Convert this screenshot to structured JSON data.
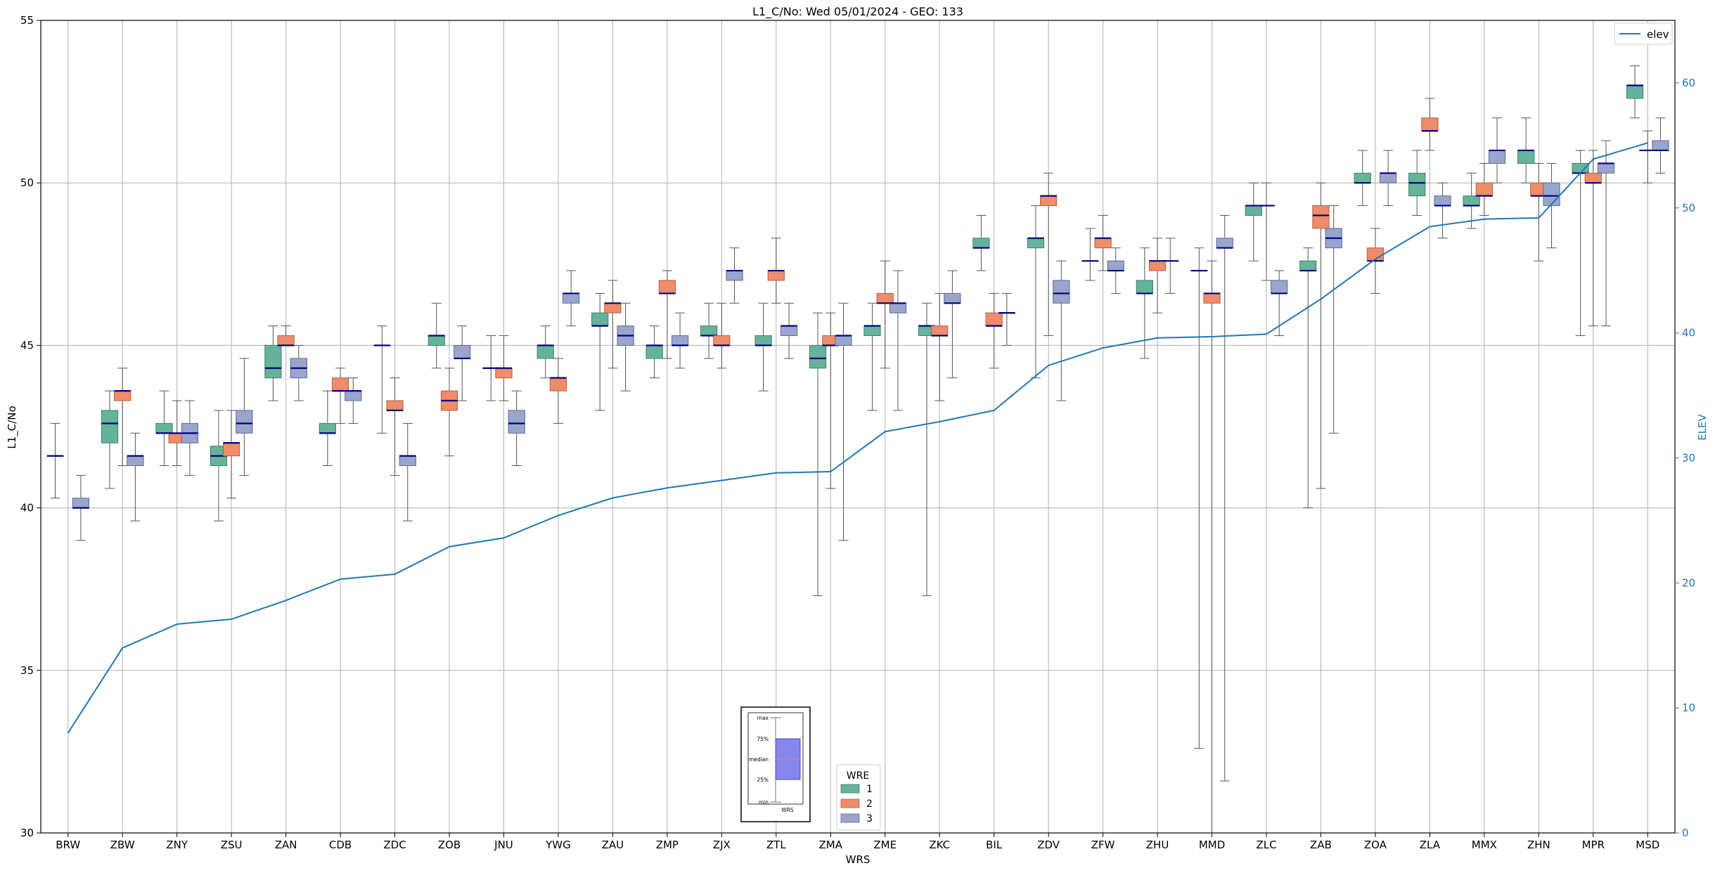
{
  "chart_data": {
    "type": "box",
    "title": "L1_C/No: Wed 05/01/2024 - GEO: 133",
    "xlabel": "WRS",
    "ylabel": "L1_C/No",
    "y2label": "ELEV",
    "ylim": [
      30,
      55
    ],
    "y2lim": [
      0,
      65
    ],
    "yticks": [
      30,
      35,
      40,
      45,
      50,
      55
    ],
    "y2ticks": [
      0,
      10,
      20,
      30,
      40,
      50,
      60
    ],
    "grid": true,
    "categories": [
      "BRW",
      "ZBW",
      "ZNY",
      "ZSU",
      "ZAN",
      "CDB",
      "ZDC",
      "ZOB",
      "JNU",
      "YWG",
      "ZAU",
      "ZMP",
      "ZJX",
      "ZTL",
      "ZMA",
      "ZME",
      "ZKC",
      "BIL",
      "ZDV",
      "ZFW",
      "ZHU",
      "MMD",
      "ZLC",
      "ZAB",
      "ZOA",
      "ZLA",
      "MMX",
      "ZHN",
      "MPR",
      "MSD"
    ],
    "legend_wre": {
      "title": "WRE",
      "entries": [
        {
          "label": "1",
          "color": "#66b39b"
        },
        {
          "label": "2",
          "color": "#ef8c6a"
        },
        {
          "label": "3",
          "color": "#9aa5cc"
        }
      ],
      "placement": "bottom-center"
    },
    "legend_elev": {
      "label": "elev",
      "color": "#1f77b4",
      "placement": "top-right"
    },
    "inset_key": {
      "labels": [
        "max",
        "75%",
        "median",
        "25%",
        "min"
      ],
      "xlabel": "WRS"
    },
    "boxes": [
      {
        "cat": "BRW",
        "wre": 1,
        "min": 40.3,
        "q1": 41.6,
        "median": 41.6,
        "q3": 41.6,
        "max": 42.6
      },
      {
        "cat": "BRW",
        "wre": 3,
        "min": 39.0,
        "q1": 40.0,
        "median": 40.0,
        "q3": 40.3,
        "max": 41.0
      },
      {
        "cat": "ZBW",
        "wre": 1,
        "min": 40.6,
        "q1": 42.0,
        "median": 42.6,
        "q3": 43.0,
        "max": 43.6
      },
      {
        "cat": "ZBW",
        "wre": 2,
        "min": 41.3,
        "q1": 43.3,
        "median": 43.6,
        "q3": 43.6,
        "max": 44.3
      },
      {
        "cat": "ZBW",
        "wre": 3,
        "min": 39.6,
        "q1": 41.3,
        "median": 41.6,
        "q3": 41.6,
        "max": 42.3
      },
      {
        "cat": "ZNY",
        "wre": 1,
        "min": 41.3,
        "q1": 42.3,
        "median": 42.3,
        "q3": 42.6,
        "max": 43.6
      },
      {
        "cat": "ZNY",
        "wre": 2,
        "min": 41.3,
        "q1": 42.0,
        "median": 42.3,
        "q3": 42.3,
        "max": 43.3
      },
      {
        "cat": "ZNY",
        "wre": 3,
        "min": 41.0,
        "q1": 42.0,
        "median": 42.3,
        "q3": 42.6,
        "max": 43.3
      },
      {
        "cat": "ZSU",
        "wre": 1,
        "min": 39.6,
        "q1": 41.3,
        "median": 41.6,
        "q3": 41.9,
        "max": 43.0
      },
      {
        "cat": "ZSU",
        "wre": 2,
        "min": 40.3,
        "q1": 41.6,
        "median": 42.0,
        "q3": 42.0,
        "max": 43.0
      },
      {
        "cat": "ZSU",
        "wre": 3,
        "min": 41.0,
        "q1": 42.3,
        "median": 42.6,
        "q3": 43.0,
        "max": 44.6
      },
      {
        "cat": "ZAN",
        "wre": 1,
        "min": 43.3,
        "q1": 44.0,
        "median": 44.3,
        "q3": 45.0,
        "max": 45.6
      },
      {
        "cat": "ZAN",
        "wre": 2,
        "min": 45.0,
        "q1": 45.0,
        "median": 45.0,
        "q3": 45.3,
        "max": 45.6
      },
      {
        "cat": "ZAN",
        "wre": 3,
        "min": 43.3,
        "q1": 44.0,
        "median": 44.3,
        "q3": 44.6,
        "max": 45.0
      },
      {
        "cat": "CDB",
        "wre": 1,
        "min": 41.3,
        "q1": 42.3,
        "median": 42.3,
        "q3": 42.6,
        "max": 43.6
      },
      {
        "cat": "CDB",
        "wre": 2,
        "min": 42.6,
        "q1": 43.6,
        "median": 43.6,
        "q3": 44.0,
        "max": 44.3
      },
      {
        "cat": "CDB",
        "wre": 3,
        "min": 42.6,
        "q1": 43.3,
        "median": 43.6,
        "q3": 43.6,
        "max": 44.0
      },
      {
        "cat": "ZDC",
        "wre": 1,
        "min": 42.3,
        "q1": 45.0,
        "median": 45.0,
        "q3": 45.0,
        "max": 45.6
      },
      {
        "cat": "ZDC",
        "wre": 2,
        "min": 41.0,
        "q1": 43.0,
        "median": 43.0,
        "q3": 43.3,
        "max": 44.0
      },
      {
        "cat": "ZDC",
        "wre": 3,
        "min": 39.6,
        "q1": 41.3,
        "median": 41.6,
        "q3": 41.6,
        "max": 42.6
      },
      {
        "cat": "ZOB",
        "wre": 1,
        "min": 44.3,
        "q1": 45.0,
        "median": 45.3,
        "q3": 45.3,
        "max": 46.3
      },
      {
        "cat": "ZOB",
        "wre": 2,
        "min": 41.6,
        "q1": 43.0,
        "median": 43.3,
        "q3": 43.6,
        "max": 44.3
      },
      {
        "cat": "ZOB",
        "wre": 3,
        "min": 43.3,
        "q1": 44.6,
        "median": 44.6,
        "q3": 45.0,
        "max": 45.6
      },
      {
        "cat": "JNU",
        "wre": 1,
        "min": 43.3,
        "q1": 44.3,
        "median": 44.3,
        "q3": 44.3,
        "max": 45.3
      },
      {
        "cat": "JNU",
        "wre": 2,
        "min": 43.3,
        "q1": 44.0,
        "median": 44.3,
        "q3": 44.3,
        "max": 45.3
      },
      {
        "cat": "JNU",
        "wre": 3,
        "min": 41.3,
        "q1": 42.3,
        "median": 42.6,
        "q3": 43.0,
        "max": 43.6
      },
      {
        "cat": "YWG",
        "wre": 1,
        "min": 44.0,
        "q1": 44.6,
        "median": 45.0,
        "q3": 45.0,
        "max": 45.6
      },
      {
        "cat": "YWG",
        "wre": 2,
        "min": 42.6,
        "q1": 43.6,
        "median": 44.0,
        "q3": 44.0,
        "max": 44.6
      },
      {
        "cat": "YWG",
        "wre": 3,
        "min": 45.6,
        "q1": 46.3,
        "median": 46.6,
        "q3": 46.6,
        "max": 47.3
      },
      {
        "cat": "ZAU",
        "wre": 1,
        "min": 43.0,
        "q1": 45.6,
        "median": 45.6,
        "q3": 46.0,
        "max": 46.6
      },
      {
        "cat": "ZAU",
        "wre": 2,
        "min": 44.3,
        "q1": 46.0,
        "median": 46.3,
        "q3": 46.3,
        "max": 47.0
      },
      {
        "cat": "ZAU",
        "wre": 3,
        "min": 43.6,
        "q1": 45.0,
        "median": 45.3,
        "q3": 45.6,
        "max": 46.3
      },
      {
        "cat": "ZMP",
        "wre": 1,
        "min": 44.0,
        "q1": 44.6,
        "median": 45.0,
        "q3": 45.0,
        "max": 45.6
      },
      {
        "cat": "ZMP",
        "wre": 2,
        "min": 44.6,
        "q1": 46.6,
        "median": 46.6,
        "q3": 47.0,
        "max": 47.3
      },
      {
        "cat": "ZMP",
        "wre": 3,
        "min": 44.3,
        "q1": 45.0,
        "median": 45.0,
        "q3": 45.3,
        "max": 46.0
      },
      {
        "cat": "ZJX",
        "wre": 1,
        "min": 44.6,
        "q1": 45.3,
        "median": 45.3,
        "q3": 45.6,
        "max": 46.3
      },
      {
        "cat": "ZJX",
        "wre": 2,
        "min": 44.3,
        "q1": 45.0,
        "median": 45.0,
        "q3": 45.3,
        "max": 46.3
      },
      {
        "cat": "ZJX",
        "wre": 3,
        "min": 46.3,
        "q1": 47.0,
        "median": 47.3,
        "q3": 47.3,
        "max": 48.0
      },
      {
        "cat": "ZTL",
        "wre": 1,
        "min": 43.6,
        "q1": 45.0,
        "median": 45.0,
        "q3": 45.3,
        "max": 46.3
      },
      {
        "cat": "ZTL",
        "wre": 2,
        "min": 46.3,
        "q1": 47.0,
        "median": 47.3,
        "q3": 47.3,
        "max": 48.3
      },
      {
        "cat": "ZTL",
        "wre": 3,
        "min": 44.6,
        "q1": 45.3,
        "median": 45.6,
        "q3": 45.6,
        "max": 46.3
      },
      {
        "cat": "ZMA",
        "wre": 1,
        "min": 37.3,
        "q1": 44.3,
        "median": 44.6,
        "q3": 45.0,
        "max": 46.0
      },
      {
        "cat": "ZMA",
        "wre": 2,
        "min": 40.6,
        "q1": 45.0,
        "median": 45.0,
        "q3": 45.3,
        "max": 46.0
      },
      {
        "cat": "ZMA",
        "wre": 3,
        "min": 39.0,
        "q1": 45.0,
        "median": 45.3,
        "q3": 45.3,
        "max": 46.3
      },
      {
        "cat": "ZME",
        "wre": 1,
        "min": 43.0,
        "q1": 45.3,
        "median": 45.6,
        "q3": 45.6,
        "max": 46.3
      },
      {
        "cat": "ZME",
        "wre": 2,
        "min": 44.3,
        "q1": 46.3,
        "median": 46.3,
        "q3": 46.6,
        "max": 47.6
      },
      {
        "cat": "ZME",
        "wre": 3,
        "min": 43.0,
        "q1": 46.0,
        "median": 46.3,
        "q3": 46.3,
        "max": 47.3
      },
      {
        "cat": "ZKC",
        "wre": 1,
        "min": 37.3,
        "q1": 45.3,
        "median": 45.6,
        "q3": 45.6,
        "max": 46.3
      },
      {
        "cat": "ZKC",
        "wre": 2,
        "min": 43.3,
        "q1": 45.3,
        "median": 45.3,
        "q3": 45.6,
        "max": 46.6
      },
      {
        "cat": "ZKC",
        "wre": 3,
        "min": 44.0,
        "q1": 46.3,
        "median": 46.3,
        "q3": 46.6,
        "max": 47.3
      },
      {
        "cat": "BIL",
        "wre": 1,
        "min": 47.3,
        "q1": 48.0,
        "median": 48.0,
        "q3": 48.3,
        "max": 49.0
      },
      {
        "cat": "BIL",
        "wre": 2,
        "min": 44.3,
        "q1": 45.6,
        "median": 45.6,
        "q3": 46.0,
        "max": 46.6
      },
      {
        "cat": "BIL",
        "wre": 3,
        "min": 45.0,
        "q1": 46.0,
        "median": 46.0,
        "q3": 46.0,
        "max": 46.6
      },
      {
        "cat": "ZDV",
        "wre": 1,
        "min": 44.0,
        "q1": 48.0,
        "median": 48.3,
        "q3": 48.3,
        "max": 49.3
      },
      {
        "cat": "ZDV",
        "wre": 2,
        "min": 45.3,
        "q1": 49.3,
        "median": 49.6,
        "q3": 49.6,
        "max": 50.3
      },
      {
        "cat": "ZDV",
        "wre": 3,
        "min": 43.3,
        "q1": 46.3,
        "median": 46.6,
        "q3": 47.0,
        "max": 47.6
      },
      {
        "cat": "ZFW",
        "wre": 1,
        "min": 47.0,
        "q1": 47.6,
        "median": 47.6,
        "q3": 47.6,
        "max": 48.6
      },
      {
        "cat": "ZFW",
        "wre": 2,
        "min": 47.3,
        "q1": 48.0,
        "median": 48.3,
        "q3": 48.3,
        "max": 49.0
      },
      {
        "cat": "ZFW",
        "wre": 3,
        "min": 46.6,
        "q1": 47.3,
        "median": 47.3,
        "q3": 47.6,
        "max": 48.0
      },
      {
        "cat": "ZHU",
        "wre": 1,
        "min": 44.6,
        "q1": 46.6,
        "median": 46.6,
        "q3": 47.0,
        "max": 48.0
      },
      {
        "cat": "ZHU",
        "wre": 2,
        "min": 46.0,
        "q1": 47.3,
        "median": 47.6,
        "q3": 47.6,
        "max": 48.3
      },
      {
        "cat": "ZHU",
        "wre": 3,
        "min": 46.6,
        "q1": 47.6,
        "median": 47.6,
        "q3": 47.6,
        "max": 48.3
      },
      {
        "cat": "MMD",
        "wre": 1,
        "min": 32.6,
        "q1": 47.3,
        "median": 47.3,
        "q3": 47.3,
        "max": 48.0
      },
      {
        "cat": "MMD",
        "wre": 2,
        "min": 30.0,
        "q1": 46.3,
        "median": 46.6,
        "q3": 46.6,
        "max": 47.6
      },
      {
        "cat": "MMD",
        "wre": 3,
        "min": 31.6,
        "q1": 48.0,
        "median": 48.0,
        "q3": 48.3,
        "max": 49.0
      },
      {
        "cat": "ZLC",
        "wre": 1,
        "min": 47.6,
        "q1": 49.0,
        "median": 49.3,
        "q3": 49.3,
        "max": 50.0
      },
      {
        "cat": "ZLC",
        "wre": 2,
        "min": 47.0,
        "q1": 49.3,
        "median": 49.3,
        "q3": 49.3,
        "max": 50.0
      },
      {
        "cat": "ZLC",
        "wre": 3,
        "min": 45.3,
        "q1": 46.6,
        "median": 46.6,
        "q3": 47.0,
        "max": 47.3
      },
      {
        "cat": "ZAB",
        "wre": 1,
        "min": 40.0,
        "q1": 47.3,
        "median": 47.3,
        "q3": 47.6,
        "max": 48.0
      },
      {
        "cat": "ZAB",
        "wre": 2,
        "min": 40.6,
        "q1": 48.6,
        "median": 49.0,
        "q3": 49.3,
        "max": 50.0
      },
      {
        "cat": "ZAB",
        "wre": 3,
        "min": 42.3,
        "q1": 48.0,
        "median": 48.3,
        "q3": 48.6,
        "max": 49.3
      },
      {
        "cat": "ZOA",
        "wre": 1,
        "min": 49.3,
        "q1": 50.0,
        "median": 50.0,
        "q3": 50.3,
        "max": 51.0
      },
      {
        "cat": "ZOA",
        "wre": 2,
        "min": 46.6,
        "q1": 47.6,
        "median": 47.6,
        "q3": 48.0,
        "max": 48.6
      },
      {
        "cat": "ZOA",
        "wre": 3,
        "min": 49.3,
        "q1": 50.0,
        "median": 50.3,
        "q3": 50.3,
        "max": 51.0
      },
      {
        "cat": "ZLA",
        "wre": 1,
        "min": 49.0,
        "q1": 49.6,
        "median": 50.0,
        "q3": 50.3,
        "max": 51.0
      },
      {
        "cat": "ZLA",
        "wre": 2,
        "min": 51.0,
        "q1": 51.6,
        "median": 51.6,
        "q3": 52.0,
        "max": 52.6
      },
      {
        "cat": "ZLA",
        "wre": 3,
        "min": 48.3,
        "q1": 49.3,
        "median": 49.3,
        "q3": 49.6,
        "max": 50.0
      },
      {
        "cat": "MMX",
        "wre": 1,
        "min": 48.6,
        "q1": 49.3,
        "median": 49.3,
        "q3": 49.6,
        "max": 50.3
      },
      {
        "cat": "MMX",
        "wre": 2,
        "min": 49.0,
        "q1": 49.6,
        "median": 49.6,
        "q3": 50.0,
        "max": 50.6
      },
      {
        "cat": "MMX",
        "wre": 3,
        "min": 50.0,
        "q1": 50.6,
        "median": 51.0,
        "q3": 51.0,
        "max": 52.0
      },
      {
        "cat": "ZHN",
        "wre": 1,
        "min": 50.0,
        "q1": 50.6,
        "median": 51.0,
        "q3": 51.0,
        "max": 52.0
      },
      {
        "cat": "ZHN",
        "wre": 2,
        "min": 47.6,
        "q1": 49.6,
        "median": 49.6,
        "q3": 50.0,
        "max": 50.6
      },
      {
        "cat": "ZHN",
        "wre": 3,
        "min": 48.0,
        "q1": 49.3,
        "median": 49.6,
        "q3": 50.0,
        "max": 50.6
      },
      {
        "cat": "MPR",
        "wre": 1,
        "min": 45.3,
        "q1": 50.3,
        "median": 50.3,
        "q3": 50.6,
        "max": 51.0
      },
      {
        "cat": "MPR",
        "wre": 2,
        "min": 45.6,
        "q1": 50.0,
        "median": 50.0,
        "q3": 50.3,
        "max": 51.0
      },
      {
        "cat": "MPR",
        "wre": 3,
        "min": 45.6,
        "q1": 50.3,
        "median": 50.6,
        "q3": 50.6,
        "max": 51.3
      },
      {
        "cat": "MSD",
        "wre": 1,
        "min": 52.0,
        "q1": 52.6,
        "median": 53.0,
        "q3": 53.0,
        "max": 53.6
      },
      {
        "cat": "MSD",
        "wre": 2,
        "min": 50.0,
        "q1": 51.0,
        "median": 51.0,
        "q3": 51.0,
        "max": 51.6
      },
      {
        "cat": "MSD",
        "wre": 3,
        "min": 50.3,
        "q1": 51.0,
        "median": 51.0,
        "q3": 51.3,
        "max": 52.0
      }
    ],
    "elev_series": {
      "name": "elev",
      "values": [
        8.0,
        14.8,
        16.7,
        17.1,
        18.6,
        20.3,
        20.7,
        22.9,
        23.6,
        25.4,
        26.8,
        27.6,
        28.2,
        28.8,
        28.9,
        32.1,
        32.9,
        33.8,
        37.4,
        38.8,
        39.6,
        39.7,
        39.9,
        42.7,
        45.9,
        48.5,
        49.1,
        49.2,
        53.9,
        55.2
      ]
    }
  }
}
